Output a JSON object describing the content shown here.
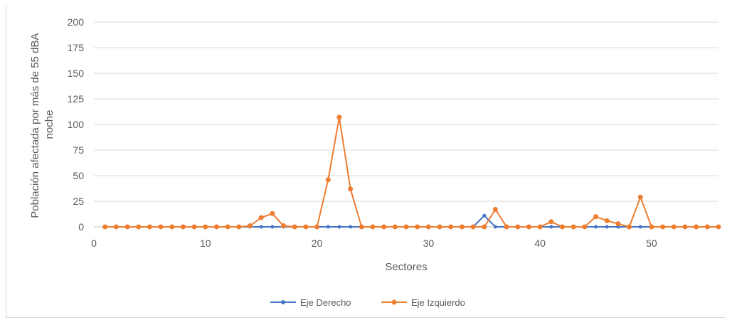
{
  "chart_data": {
    "type": "line",
    "title": "",
    "xlabel": "Sectores",
    "ylabel": [
      "Población afectada por más de 55 dBA",
      "noche"
    ],
    "xlim": [
      0,
      56
    ],
    "ylim": [
      0,
      200
    ],
    "x_ticks": [
      0,
      10,
      20,
      30,
      40,
      50
    ],
    "y_ticks": [
      0,
      25,
      50,
      75,
      100,
      125,
      150,
      175,
      200
    ],
    "grid": "horizontal",
    "legend_position": "bottom",
    "x": [
      1,
      2,
      3,
      4,
      5,
      6,
      7,
      8,
      9,
      10,
      11,
      12,
      13,
      14,
      15,
      16,
      17,
      18,
      19,
      20,
      21,
      22,
      23,
      24,
      25,
      26,
      27,
      28,
      29,
      30,
      31,
      32,
      33,
      34,
      35,
      36,
      37,
      38,
      39,
      40,
      41,
      42,
      43,
      44,
      45,
      46,
      47,
      48,
      49,
      50,
      51,
      52,
      53,
      54,
      55,
      56
    ],
    "series": [
      {
        "name": "Eje Derecho",
        "color": "#4472c4",
        "values": [
          0,
          0,
          0,
          0,
          0,
          0,
          0,
          0,
          0,
          0,
          0,
          0,
          0,
          0,
          0,
          0,
          0,
          0,
          0,
          0,
          0,
          0,
          0,
          0,
          0,
          0,
          0,
          0,
          0,
          0,
          0,
          0,
          0,
          0,
          11,
          0,
          0,
          0,
          0,
          0,
          0,
          0,
          0,
          0,
          0,
          0,
          0,
          0,
          0,
          0,
          0,
          0,
          0,
          0,
          0,
          0
        ]
      },
      {
        "name": "Eje Izquierdo",
        "color": "#ed7d31",
        "values": [
          0,
          0,
          0,
          0,
          0,
          0,
          0,
          0,
          0,
          0,
          0,
          0,
          0,
          1,
          9,
          13,
          1,
          0,
          0,
          0,
          46,
          107,
          37,
          0,
          0,
          0,
          0,
          0,
          0,
          0,
          0,
          0,
          0,
          0,
          0,
          17,
          0,
          0,
          0,
          0,
          5,
          0,
          0,
          0,
          10,
          6,
          3,
          0,
          29,
          0,
          0,
          0,
          0,
          0,
          0,
          0
        ]
      }
    ]
  }
}
